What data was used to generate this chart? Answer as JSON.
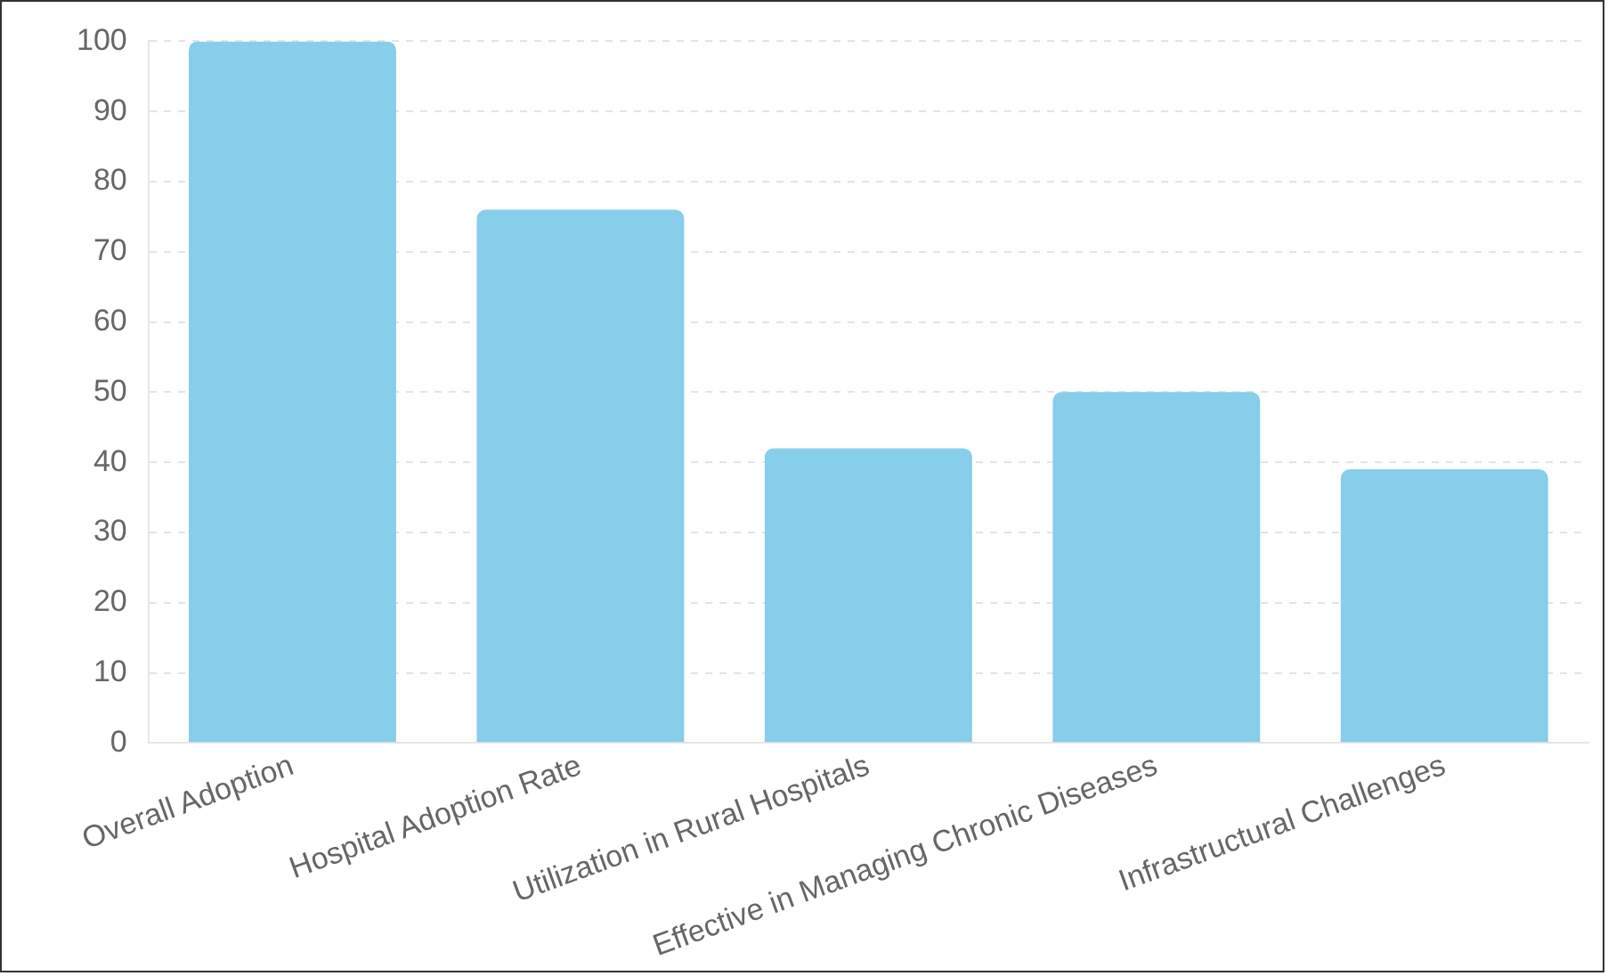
{
  "chart_data": {
    "type": "bar",
    "categories": [
      "Overall Adoption",
      "Hospital Adoption Rate",
      "Utilization in Rural Hospitals",
      "Effective in Managing Chronic Diseases",
      "Infrastructural Challenges"
    ],
    "values": [
      100,
      76,
      42,
      50,
      39
    ],
    "color": "#87ceeb",
    "ylim": [
      0,
      100
    ],
    "yticks": [
      0,
      10,
      20,
      30,
      40,
      50,
      60,
      70,
      80,
      90,
      100
    ],
    "grid": "y",
    "legend": false
  }
}
